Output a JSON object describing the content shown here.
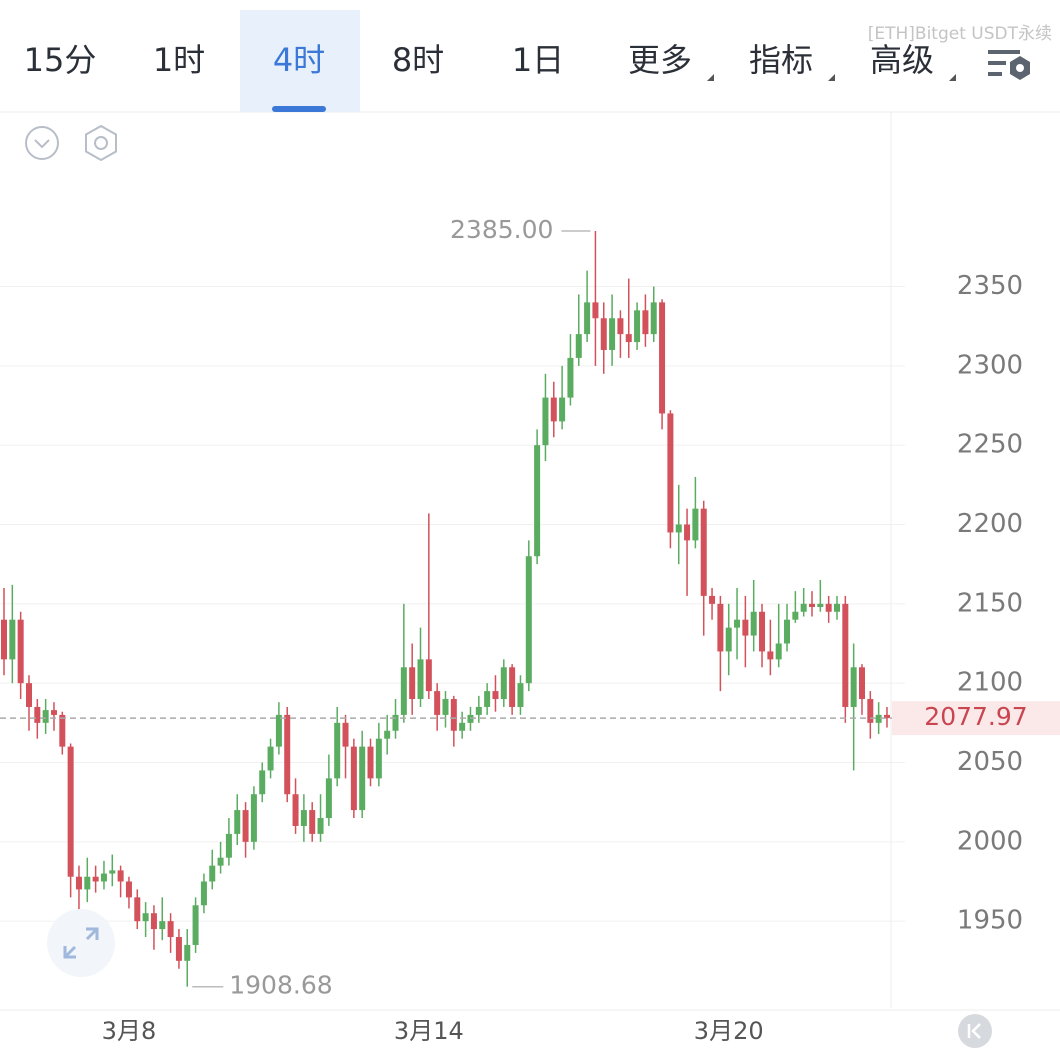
{
  "toolbar": {
    "tabs": [
      "15分",
      "1时",
      "4时",
      "8时",
      "1日",
      "更多",
      "指标",
      "高级"
    ],
    "active": 2,
    "menus": [
      5,
      6,
      7
    ]
  },
  "watermark": "[ETH]Bitget USDT永续",
  "chart_data": {
    "type": "candlestick",
    "categories": [
      null,
      null,
      null,
      null,
      null,
      null,
      null,
      null,
      null,
      null,
      null,
      null,
      null,
      null,
      null,
      "3月8",
      null,
      null,
      null,
      null,
      null,
      null,
      null,
      null,
      null,
      null,
      null,
      null,
      null,
      null,
      null,
      null,
      null,
      null,
      null,
      null,
      null,
      null,
      null,
      null,
      null,
      null,
      null,
      null,
      null,
      null,
      null,
      null,
      null,
      null,
      null,
      "3月14",
      null,
      null,
      null,
      null,
      null,
      null,
      null,
      null,
      null,
      null,
      null,
      null,
      null,
      null,
      null,
      null,
      null,
      null,
      null,
      null,
      null,
      null,
      null,
      null,
      null,
      null,
      null,
      null,
      null,
      null,
      null,
      null,
      null,
      null,
      null,
      "3月20",
      null,
      null,
      null,
      null,
      null,
      null,
      null,
      null,
      null,
      null,
      null,
      null,
      null,
      null,
      null,
      null,
      null,
      null,
      null
    ],
    "open": [
      2140,
      2115,
      2140,
      2100,
      2085,
      2075,
      2083,
      2080,
      2060,
      1978,
      1970,
      1978,
      1975,
      1980,
      1982,
      1975,
      1965,
      1950,
      1955,
      1945,
      1950,
      1940,
      1925,
      1935,
      1960,
      1975,
      1985,
      1990,
      2005,
      2020,
      2000,
      2030,
      2045,
      2060,
      2080,
      2030,
      2010,
      2020,
      2005,
      2015,
      2040,
      2075,
      2060,
      2020,
      2060,
      2040,
      2065,
      2070,
      2080,
      2110,
      2090,
      2115,
      2095,
      2080,
      2090,
      2070,
      2075,
      2080,
      2085,
      2095,
      2090,
      2110,
      2085,
      2100,
      2180,
      2250,
      2280,
      2265,
      2280,
      2305,
      2320,
      2340,
      2330,
      2310,
      2330,
      2320,
      2315,
      2335,
      2320,
      2340,
      2270,
      2195,
      2200,
      2190,
      2210,
      2155,
      2150,
      2120,
      2135,
      2140,
      2130,
      2145,
      2120,
      2115,
      2125,
      2140,
      2145,
      2150,
      2148,
      2150,
      2145,
      2150,
      2085,
      2110,
      2090,
      2075,
      2080
    ],
    "high": [
      2160,
      2162,
      2145,
      2105,
      2090,
      2090,
      2088,
      2082,
      2062,
      1985,
      1990,
      1985,
      1988,
      1992,
      1985,
      1978,
      1970,
      1962,
      1960,
      1965,
      1955,
      1945,
      1945,
      1965,
      1980,
      1995,
      2000,
      2015,
      2030,
      2025,
      2035,
      2050,
      2065,
      2088,
      2085,
      2040,
      2030,
      2025,
      2030,
      2055,
      2085,
      2080,
      2065,
      2070,
      2065,
      2075,
      2080,
      2090,
      2150,
      2125,
      2135,
      2207,
      2100,
      2095,
      2092,
      2082,
      2085,
      2092,
      2100,
      2105,
      2115,
      2112,
      2105,
      2190,
      2260,
      2295,
      2290,
      2300,
      2320,
      2345,
      2360,
      2385,
      2340,
      2345,
      2335,
      2355,
      2340,
      2345,
      2350,
      2342,
      2272,
      2225,
      2210,
      2230,
      2215,
      2160,
      2155,
      2150,
      2160,
      2155,
      2165,
      2150,
      2140,
      2150,
      2150,
      2158,
      2160,
      2158,
      2165,
      2155,
      2155,
      2155,
      2125,
      2112,
      2095,
      2088,
      2085
    ],
    "low": [
      2105,
      2100,
      2090,
      2070,
      2065,
      2068,
      2070,
      2055,
      1965,
      1955,
      1962,
      1968,
      1970,
      1972,
      1965,
      1958,
      1945,
      1940,
      1932,
      1938,
      1930,
      1920,
      1908.68,
      1930,
      1955,
      1970,
      1980,
      1985,
      1998,
      1990,
      1995,
      2025,
      2040,
      2055,
      2025,
      2005,
      2000,
      2000,
      2000,
      2010,
      2035,
      2040,
      2015,
      2015,
      2035,
      2035,
      2055,
      2065,
      2075,
      2080,
      2085,
      2090,
      2070,
      2072,
      2060,
      2065,
      2070,
      2075,
      2080,
      2082,
      2085,
      2080,
      2080,
      2095,
      2175,
      2240,
      2255,
      2260,
      2275,
      2300,
      2315,
      2300,
      2295,
      2300,
      2305,
      2305,
      2310,
      2312,
      2315,
      2260,
      2185,
      2175,
      2155,
      2185,
      2130,
      2140,
      2095,
      2105,
      2115,
      2110,
      2120,
      2110,
      2105,
      2110,
      2120,
      2138,
      2142,
      2142,
      2145,
      2138,
      2140,
      2075,
      2045,
      2080,
      2065,
      2068,
      2072
    ],
    "close": [
      2115,
      2140,
      2100,
      2085,
      2075,
      2083,
      2080,
      2060,
      1978,
      1970,
      1978,
      1975,
      1980,
      1982,
      1975,
      1965,
      1950,
      1955,
      1945,
      1950,
      1940,
      1925,
      1935,
      1960,
      1975,
      1985,
      1990,
      2005,
      2020,
      2000,
      2030,
      2045,
      2060,
      2080,
      2030,
      2010,
      2020,
      2005,
      2015,
      2040,
      2075,
      2060,
      2020,
      2060,
      2040,
      2065,
      2070,
      2080,
      2110,
      2090,
      2115,
      2095,
      2080,
      2090,
      2070,
      2075,
      2080,
      2085,
      2095,
      2090,
      2110,
      2085,
      2100,
      2180,
      2250,
      2280,
      2265,
      2280,
      2305,
      2320,
      2340,
      2330,
      2310,
      2330,
      2320,
      2315,
      2335,
      2320,
      2340,
      2270,
      2195,
      2200,
      2190,
      2210,
      2155,
      2150,
      2120,
      2135,
      2140,
      2130,
      2145,
      2120,
      2115,
      2125,
      2140,
      2145,
      2150,
      2148,
      2150,
      2145,
      2150,
      2085,
      2110,
      2090,
      2075,
      2080,
      2077.97
    ],
    "up_color": "#5aac60",
    "down_color": "#d2515a",
    "ylim": [
      1894,
      2460
    ],
    "yticks": [
      1950,
      2000,
      2050,
      2100,
      2150,
      2200,
      2250,
      2300,
      2350
    ],
    "grid": true,
    "annotations": [
      {
        "value": 2385,
        "label": "2385.00",
        "index": 71,
        "side": "left"
      },
      {
        "value": 1908.68,
        "label": "1908.68",
        "index": 22,
        "side": "right"
      }
    ]
  }
}
